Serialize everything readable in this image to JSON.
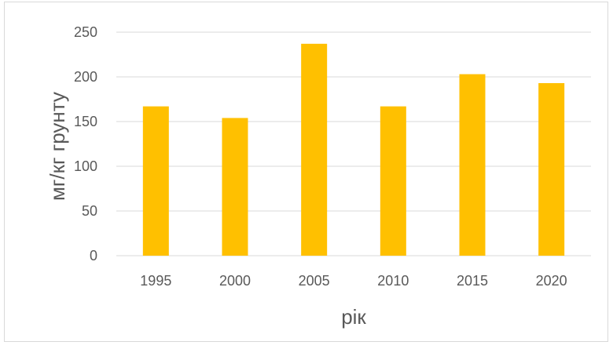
{
  "chart_data": {
    "type": "bar",
    "title": "",
    "xlabel": "рік",
    "ylabel": "мг/кг грунту",
    "categories": [
      "1995",
      "2000",
      "2005",
      "2010",
      "2015",
      "2020"
    ],
    "values": [
      167,
      154,
      237,
      167,
      203,
      193
    ],
    "ylim": [
      0,
      250
    ],
    "yticks": [
      0,
      50,
      100,
      150,
      200,
      250
    ],
    "grid": true,
    "legend": "none",
    "colors": {
      "bar": "#FFC000",
      "grid": "#d9d9d9",
      "text": "#595959"
    }
  }
}
